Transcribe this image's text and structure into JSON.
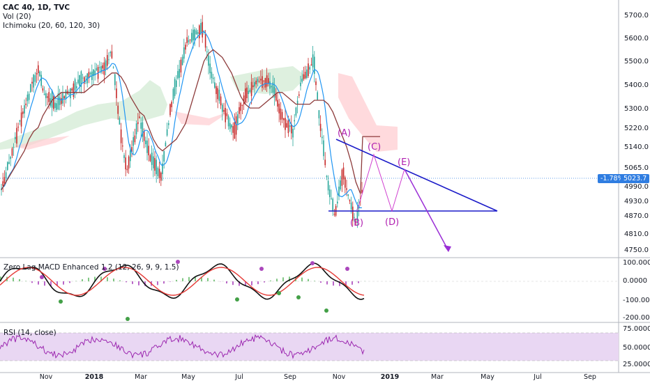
{
  "legend": {
    "title": "CAC 40, 1D, TVC",
    "vol": "Vol (20)",
    "ichimoku": "Ichimoku (20, 60, 120, 30)"
  },
  "price_axis": [
    "5700.0",
    "5600.0",
    "5500.0",
    "5400.0",
    "5300.0",
    "5220.0",
    "5140.0",
    "5065.0",
    "4990.0",
    "4930.0",
    "4870.0",
    "4810.0",
    "4750.0"
  ],
  "last_price": {
    "pct": "-1.78%",
    "value": "5023.7"
  },
  "wave_labels": [
    "(A)",
    "(B)",
    "(C)",
    "(D)",
    "(E)"
  ],
  "macd": {
    "legend": "Zero Lag MACD Enhanced 1.2 (12, 26, 9, 9, 1.5)",
    "axis": [
      "100.0000",
      "0.0000",
      "-100.0000",
      "-200.0000"
    ]
  },
  "rsi": {
    "legend": "RSI (14, close)",
    "axis": [
      "75.0000",
      "50.0000",
      "25.0000"
    ]
  },
  "time_axis": [
    {
      "label": "Nov",
      "bold": false
    },
    {
      "label": "2018",
      "bold": true
    },
    {
      "label": "Mar",
      "bold": false
    },
    {
      "label": "May",
      "bold": false
    },
    {
      "label": "Jul",
      "bold": false
    },
    {
      "label": "Sep",
      "bold": false
    },
    {
      "label": "Nov",
      "bold": false
    },
    {
      "label": "2019",
      "bold": true
    },
    {
      "label": "Mar",
      "bold": false
    },
    {
      "label": "May",
      "bold": false
    },
    {
      "label": "Jul",
      "bold": false
    },
    {
      "label": "Sep",
      "bold": false
    }
  ],
  "colors": {
    "up": "#26a69a",
    "down": "#c62828",
    "tenkan": "#2196f3",
    "kijun": "#8d3b3b",
    "triangle": "#1a1ac8",
    "wave": "#d040d0",
    "arrow": "#9b2fd6",
    "rsi_line": "#9c27b0",
    "rsi_band": "#e9d7f3",
    "last_tag": "#2f7de1"
  }
}
